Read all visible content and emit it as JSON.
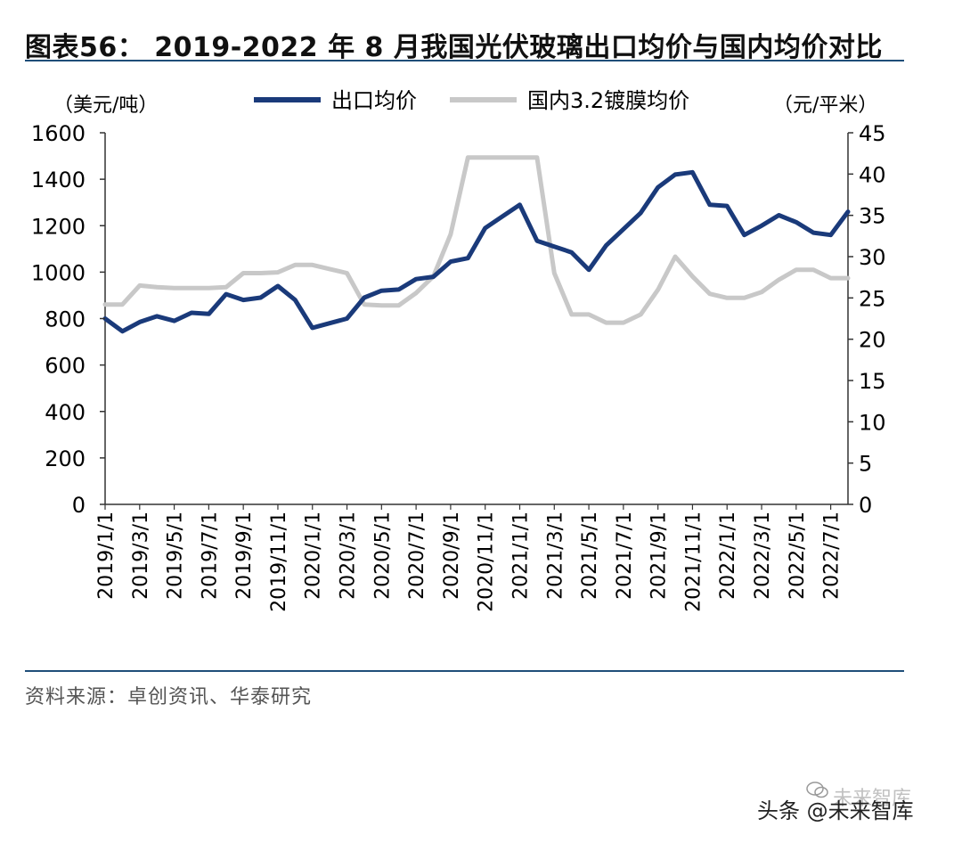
{
  "title": "图表56： 2019-2022 年 8 月我国光伏玻璃出口均价与国内均价对比",
  "source": "资料来源：卓创资讯、华泰研究",
  "watermark": {
    "text": "头条 @未来智库",
    "ghost_text": "未来智库"
  },
  "chart_data": {
    "type": "line",
    "title": "2019-2022 年 8 月我国光伏玻璃出口均价与国内均价对比",
    "left_axis": {
      "label": "（美元/吨）",
      "range": [
        0,
        1600
      ],
      "ticks": [
        0,
        200,
        400,
        600,
        800,
        1000,
        1200,
        1400,
        1600
      ]
    },
    "right_axis": {
      "label": "（元/平米）",
      "range": [
        0,
        45
      ],
      "ticks": [
        0,
        5,
        10,
        15,
        20,
        25,
        30,
        35,
        40,
        45
      ]
    },
    "x_tick_labels": [
      "2019/1/1",
      "2019/3/1",
      "2019/5/1",
      "2019/7/1",
      "2019/9/1",
      "2019/11/1",
      "2020/1/1",
      "2020/3/1",
      "2020/5/1",
      "2020/7/1",
      "2020/9/1",
      "2020/11/1",
      "2021/1/1",
      "2021/3/1",
      "2021/5/1",
      "2021/7/1",
      "2021/9/1",
      "2021/11/1",
      "2022/1/1",
      "2022/3/1",
      "2022/5/1",
      "2022/7/1"
    ],
    "x_months": [
      "2019-01",
      "2019-02",
      "2019-03",
      "2019-04",
      "2019-05",
      "2019-06",
      "2019-07",
      "2019-08",
      "2019-09",
      "2019-10",
      "2019-11",
      "2019-12",
      "2020-01",
      "2020-02",
      "2020-03",
      "2020-04",
      "2020-05",
      "2020-06",
      "2020-07",
      "2020-08",
      "2020-09",
      "2020-10",
      "2020-11",
      "2020-12",
      "2021-01",
      "2021-02",
      "2021-03",
      "2021-04",
      "2021-05",
      "2021-06",
      "2021-07",
      "2021-08",
      "2021-09",
      "2021-10",
      "2021-11",
      "2021-12",
      "2022-01",
      "2022-02",
      "2022-03",
      "2022-04",
      "2022-05",
      "2022-06",
      "2022-07",
      "2022-08"
    ],
    "legend_position": "top-center",
    "series": [
      {
        "name": "出口均价",
        "axis": "left",
        "color": "#1a3a7a",
        "values": [
          800,
          745,
          785,
          810,
          790,
          825,
          820,
          905,
          880,
          890,
          940,
          880,
          760,
          780,
          800,
          890,
          920,
          925,
          970,
          980,
          1045,
          1060,
          1190,
          1240,
          1290,
          1135,
          1110,
          1085,
          1010,
          1115,
          1185,
          1255,
          1365,
          1420,
          1430,
          1290,
          1285,
          1160,
          1200,
          1245,
          1215,
          1170,
          1160,
          1260
        ]
      },
      {
        "name": "国内3.2镀膜均价",
        "axis": "right",
        "color": "#c8c8c8",
        "values": [
          24.2,
          24.2,
          26.5,
          26.3,
          26.2,
          26.2,
          26.2,
          26.3,
          28.0,
          28.0,
          28.1,
          29.0,
          29.0,
          28.5,
          28.0,
          24.2,
          24.1,
          24.1,
          25.6,
          27.6,
          32.7,
          42.0,
          42.0,
          42.0,
          42.0,
          42.0,
          28.0,
          23.0,
          23.0,
          22.0,
          22.0,
          23.0,
          26.0,
          30.0,
          27.6,
          25.5,
          25.0,
          25.0,
          25.7,
          27.2,
          28.4,
          28.4,
          27.4,
          27.4
        ]
      }
    ]
  }
}
